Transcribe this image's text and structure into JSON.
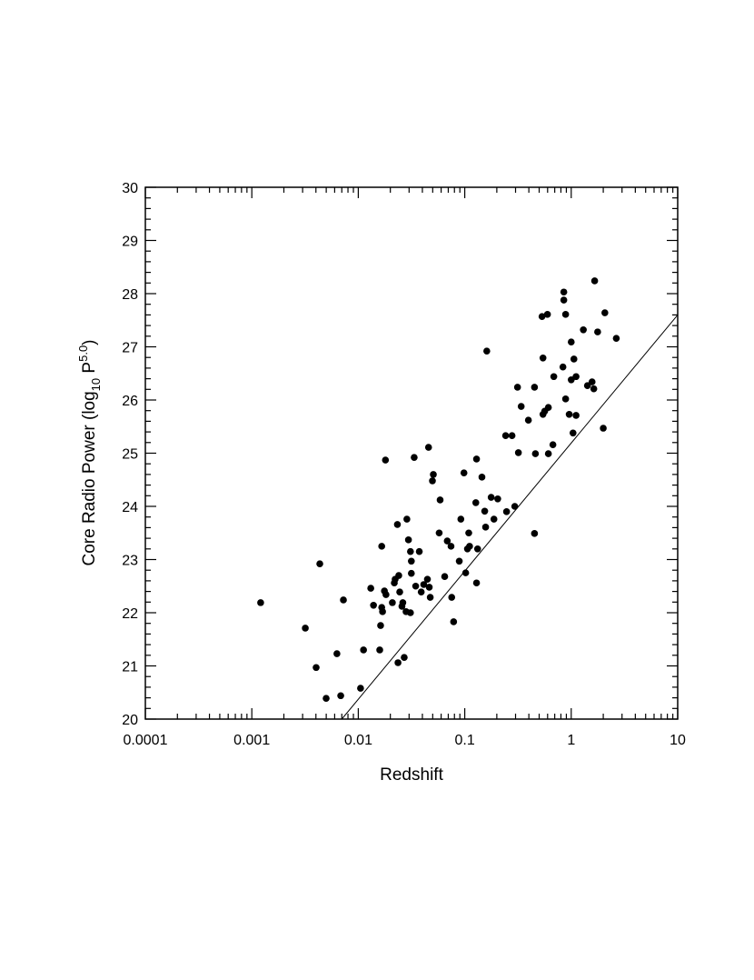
{
  "chart_data": {
    "type": "scatter",
    "xlabel": "Redshift",
    "ylabel": [
      "Core Radio Power (log",
      "10",
      " P",
      "5.0",
      ")"
    ],
    "x_log": true,
    "color": "#000000",
    "xlim": [
      0.0001,
      10
    ],
    "xticks": [
      0.0001,
      0.001,
      0.01,
      0.1,
      1,
      10
    ],
    "ylim": [
      20,
      30
    ],
    "yticks": [
      20,
      21,
      22,
      23,
      24,
      25,
      26,
      27,
      28,
      29,
      30
    ],
    "x": [
      0.00121,
      0.00318,
      0.00402,
      0.00435,
      0.00499,
      0.0063,
      0.00684,
      0.00725,
      0.0105,
      0.0112,
      0.0131,
      0.0139,
      0.0159,
      0.0162,
      0.0166,
      0.0166,
      0.0169,
      0.0176,
      0.018,
      0.0182,
      0.0209,
      0.0218,
      0.0222,
      0.0233,
      0.0236,
      0.024,
      0.0245,
      0.0257,
      0.0262,
      0.027,
      0.0281,
      0.0286,
      0.0296,
      0.0309,
      0.0315,
      0.0315,
      0.0309,
      0.0335,
      0.0346,
      0.0374,
      0.039,
      0.0412,
      0.0446,
      0.0457,
      0.0464,
      0.0474,
      0.0497,
      0.0507,
      0.0575,
      0.0587,
      0.0648,
      0.0685,
      0.0743,
      0.0754,
      0.0786,
      0.0888,
      0.0919,
      0.0983,
      0.102,
      0.106,
      0.109,
      0.111,
      0.127,
      0.129,
      0.129,
      0.132,
      0.145,
      0.154,
      0.157,
      0.161,
      0.177,
      0.188,
      0.204,
      0.242,
      0.247,
      0.278,
      0.295,
      0.313,
      0.319,
      0.339,
      0.396,
      0.452,
      0.452,
      0.461,
      0.532,
      0.543,
      0.543,
      0.564,
      0.598,
      0.61,
      0.61,
      0.673,
      0.686,
      0.836,
      0.852,
      0.852,
      0.886,
      0.886,
      0.957,
      1.0,
      1.0,
      1.06,
      1.04,
      1.11,
      1.11,
      1.3,
      1.42,
      1.57,
      1.63,
      1.66,
      1.77,
      2.0,
      2.07,
      2.65
    ],
    "y": [
      22.19,
      21.71,
      20.97,
      22.92,
      20.39,
      21.23,
      20.44,
      22.24,
      20.58,
      21.3,
      22.46,
      22.14,
      21.3,
      21.76,
      23.25,
      22.1,
      22.02,
      22.41,
      24.87,
      22.34,
      22.19,
      22.56,
      22.63,
      23.66,
      21.06,
      22.7,
      22.39,
      22.12,
      22.19,
      21.16,
      22.02,
      23.76,
      23.37,
      23.15,
      22.74,
      22.97,
      22.0,
      24.92,
      22.5,
      23.15,
      22.39,
      22.53,
      22.63,
      25.11,
      22.48,
      22.29,
      24.48,
      24.6,
      23.5,
      24.12,
      22.68,
      23.35,
      23.25,
      22.29,
      21.83,
      22.97,
      23.76,
      24.63,
      22.75,
      23.2,
      23.5,
      23.25,
      24.07,
      24.89,
      22.56,
      23.2,
      24.55,
      23.91,
      23.61,
      26.92,
      24.17,
      23.76,
      24.14,
      25.33,
      23.9,
      25.33,
      24.0,
      26.24,
      25.01,
      25.88,
      25.62,
      26.24,
      23.49,
      24.99,
      27.57,
      26.79,
      25.73,
      25.79,
      27.61,
      25.86,
      24.99,
      25.16,
      26.44,
      26.62,
      28.03,
      27.88,
      27.61,
      26.02,
      25.73,
      27.09,
      26.38,
      26.77,
      25.38,
      26.44,
      25.71,
      27.32,
      26.27,
      26.34,
      26.21,
      28.24,
      27.28,
      25.47,
      27.64,
      27.16
    ],
    "reference_line": {
      "x": [
        0.007,
        10
      ],
      "y": [
        20,
        27.6
      ]
    }
  }
}
